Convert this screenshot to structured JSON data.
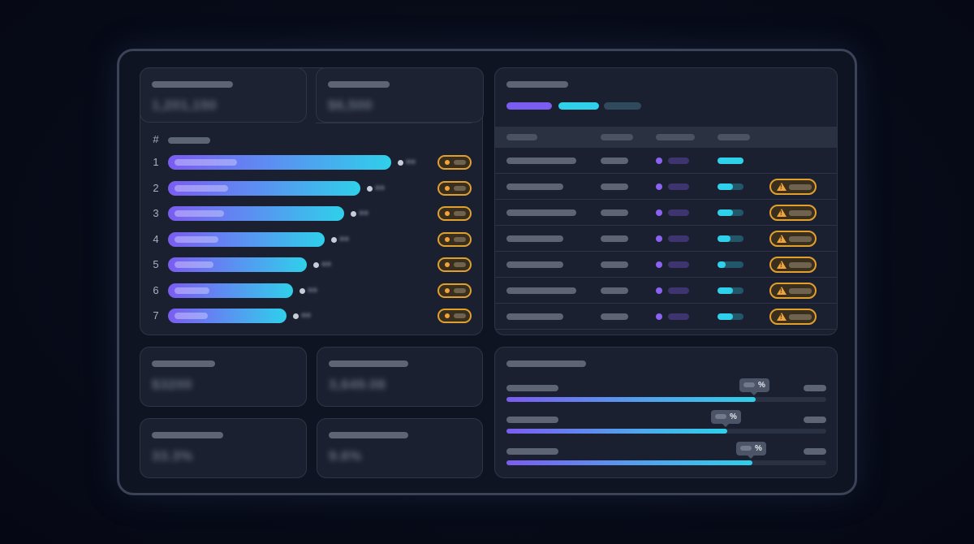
{
  "kpis_top": [
    {
      "value": "1,201,150"
    },
    {
      "value": "$6,500"
    }
  ],
  "ranking": {
    "header_symbol": "#",
    "rows": [
      {
        "rank": "1",
        "value": 1.0
      },
      {
        "rank": "2",
        "value": 0.86
      },
      {
        "rank": "3",
        "value": 0.79
      },
      {
        "rank": "4",
        "value": 0.7
      },
      {
        "rank": "5",
        "value": 0.62
      },
      {
        "rank": "6",
        "value": 0.56
      },
      {
        "rank": "7",
        "value": 0.53
      }
    ]
  },
  "table": {
    "legend_colors": [
      "#7b5cf0",
      "#2fd0ea",
      "#2e4a5c"
    ],
    "rows": [
      {
        "progress": 1.0,
        "warning": false
      },
      {
        "progress": 0.6,
        "warning": true
      },
      {
        "progress": 0.6,
        "warning": true
      },
      {
        "progress": 0.5,
        "warning": true
      },
      {
        "progress": 0.3,
        "warning": true
      },
      {
        "progress": 0.6,
        "warning": true
      },
      {
        "progress": 0.6,
        "warning": true
      }
    ]
  },
  "kpis_bottom": [
    {
      "value": "$3200"
    },
    {
      "value": "3,649.08"
    },
    {
      "value": "33.3%"
    },
    {
      "value": "9.6%"
    }
  ],
  "progress_panel": {
    "percent_symbol": "%",
    "items": [
      {
        "fill": 0.78
      },
      {
        "fill": 0.69
      },
      {
        "fill": 0.77
      }
    ]
  },
  "colors": {
    "accent_purple": "#7b5cf0",
    "accent_cyan": "#2fd0ea",
    "warning_orange": "#e0a030"
  },
  "icons": [
    "warning-triangle-icon",
    "status-dot-icon"
  ]
}
